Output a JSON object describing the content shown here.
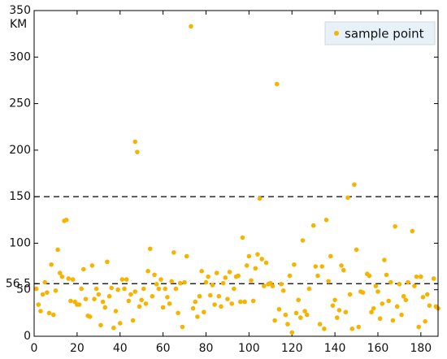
{
  "chart_data": {
    "type": "scatter",
    "y_label": "KM",
    "xlim": [
      0,
      188
    ],
    "ylim": [
      0,
      350
    ],
    "xticks": [
      0,
      20,
      40,
      60,
      80,
      100,
      120,
      140,
      160,
      180
    ],
    "yticks": [
      0,
      50,
      56.5,
      100,
      150,
      200,
      250,
      300,
      350
    ],
    "hlines": [
      150,
      56.5
    ],
    "legend": "upper right",
    "x": [
      1,
      2,
      3,
      4,
      5,
      6,
      7,
      8,
      9,
      10,
      11,
      12,
      13,
      14,
      15,
      16,
      17,
      18,
      19,
      20,
      21,
      22,
      23,
      24,
      25,
      26,
      27,
      28,
      29,
      30,
      31,
      32,
      33,
      34,
      35,
      36,
      37,
      38,
      39,
      40,
      41,
      42,
      43,
      44,
      45,
      46,
      47,
      47,
      48,
      49,
      50,
      51,
      52,
      53,
      54,
      55,
      56,
      57,
      58,
      59,
      60,
      61,
      62,
      63,
      64,
      65,
      66,
      67,
      68,
      69,
      70,
      71,
      73,
      74,
      75,
      76,
      77,
      78,
      79,
      80,
      81,
      82,
      83,
      84,
      85,
      86,
      87,
      88,
      89,
      90,
      91,
      92,
      93,
      94,
      95,
      96,
      97,
      98,
      99,
      100,
      101,
      102,
      103,
      104,
      105,
      106,
      107,
      108,
      109,
      110,
      111,
      112,
      113,
      114,
      115,
      116,
      117,
      118,
      119,
      120,
      121,
      122,
      123,
      124,
      125,
      126,
      127,
      128,
      130,
      131,
      132,
      133,
      134,
      135,
      136,
      137,
      138,
      139,
      140,
      141,
      142,
      143,
      144,
      145,
      146,
      147,
      148,
      149,
      150,
      151,
      152,
      153,
      155,
      156,
      157,
      158,
      159,
      160,
      161,
      162,
      163,
      164,
      165,
      166,
      167,
      168,
      169,
      170,
      171,
      172,
      173,
      174,
      176,
      177,
      178,
      179,
      180,
      181,
      182,
      183,
      184,
      186,
      187,
      188
    ],
    "series": [
      {
        "name": "sample point",
        "color": "#f5b400",
        "values": [
          51,
          34,
          27,
          45,
          58,
          47,
          25,
          77,
          23,
          49,
          93,
          68,
          64,
          124,
          125,
          62,
          38,
          61,
          37,
          34,
          34,
          51,
          72,
          40,
          22,
          21,
          76,
          40,
          51,
          45,
          12,
          37,
          31,
          80,
          43,
          52,
          9,
          27,
          50,
          14,
          61,
          51,
          61,
          38,
          45,
          17,
          48,
          209,
          198,
          32,
          39,
          51,
          35,
          70,
          94,
          43,
          66,
          56,
          51,
          61,
          31,
          51,
          42,
          35,
          59,
          90,
          51,
          25,
          57,
          10,
          58,
          86,
          333,
          30,
          37,
          21,
          43,
          70,
          26,
          58,
          64,
          44,
          55,
          34,
          68,
          43,
          32,
          57,
          63,
          40,
          69,
          35,
          51,
          64,
          65,
          37,
          106,
          37,
          76,
          86,
          60,
          38,
          73,
          88,
          148,
          83,
          54,
          79,
          56,
          57,
          54,
          17,
          271,
          29,
          56,
          49,
          23,
          13,
          65,
          4,
          77,
          25,
          39,
          20,
          103,
          27,
          23,
          51,
          119,
          75,
          65,
          13,
          75,
          8,
          125,
          59,
          86,
          33,
          39,
          20,
          28,
          76,
          71,
          26,
          149,
          45,
          8,
          163,
          93,
          10,
          48,
          47,
          67,
          65,
          26,
          30,
          54,
          48,
          19,
          35,
          82,
          66,
          38,
          58,
          17,
          118,
          32,
          56,
          23,
          43,
          39,
          58,
          113,
          54,
          64,
          10,
          64,
          42,
          16,
          45,
          33,
          62,
          32,
          30
        ]
      }
    ]
  }
}
